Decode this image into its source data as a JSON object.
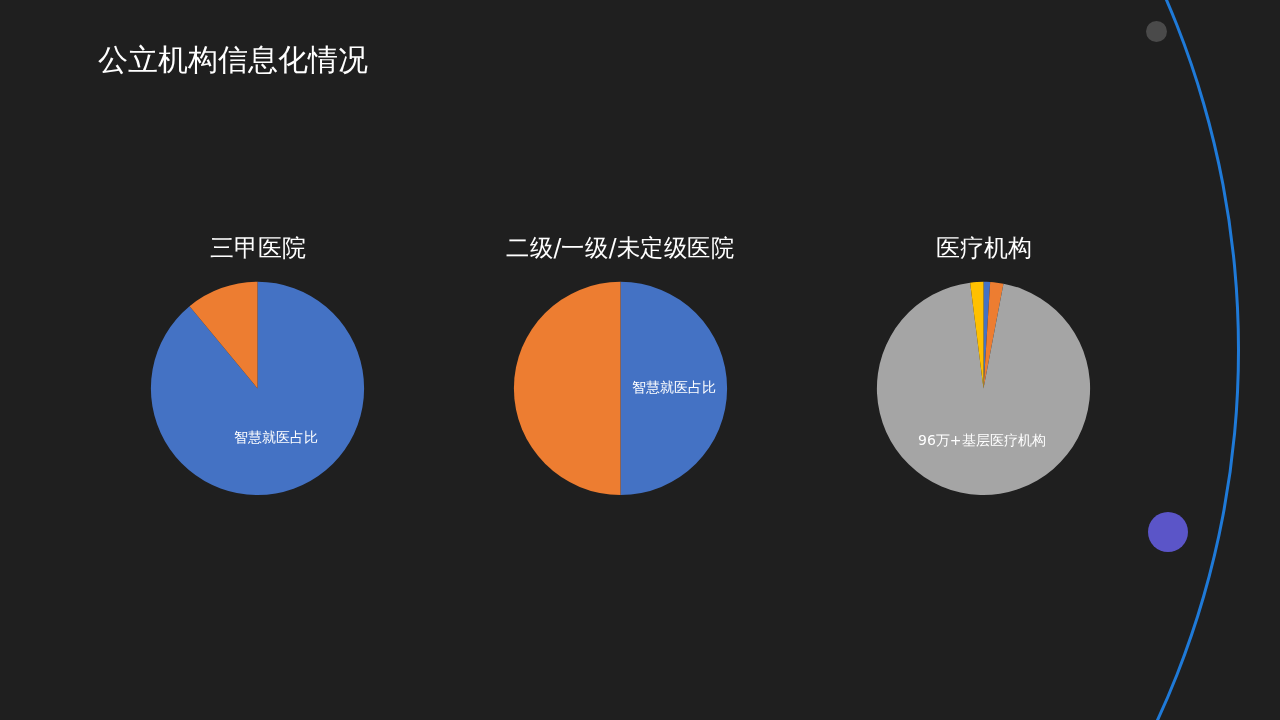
{
  "chart_data": [
    {
      "type": "other",
      "title": "公立机构信息化情况"
    },
    {
      "type": "pie",
      "title": "三甲医院",
      "categories": [
        "智慧就医占比",
        null
      ],
      "values": [
        89,
        11
      ],
      "colors": [
        "#4472c4",
        "#ed7d31"
      ]
    },
    {
      "type": "pie",
      "title": "二级/一级/未定级医院",
      "categories": [
        "智慧就医占比",
        null
      ],
      "values": [
        50,
        50
      ],
      "colors": [
        "#4472c4",
        "#ed7d31"
      ]
    },
    {
      "type": "pie",
      "title": "医疗机构",
      "categories": [
        null,
        null,
        "96万+基层医疗机构",
        null
      ],
      "values": [
        1,
        2,
        95,
        2
      ],
      "colors": [
        "#4472c4",
        "#ed7d31",
        "#a5a5a5",
        "#ffc000"
      ]
    }
  ]
}
